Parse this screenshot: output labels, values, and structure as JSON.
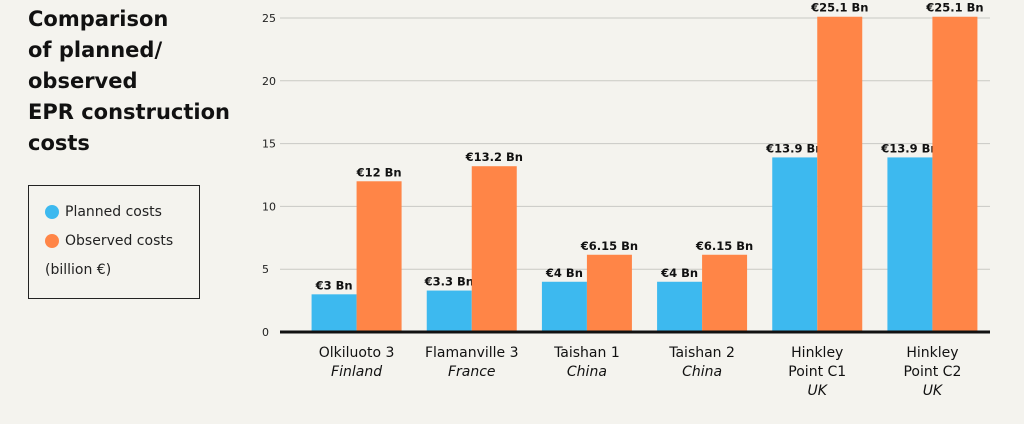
{
  "chart_data": {
    "type": "bar",
    "title": "Comparison\nof planned/\nobserved\nEPR construction\ncosts",
    "legend_note": "(billion €)",
    "categories": [
      "Olkiluoto 3",
      "Flamanville 3",
      "Taishan 1",
      "Taishan 2",
      "Hinkley Point C1",
      "Hinkley Point C2"
    ],
    "countries": [
      "Finland",
      "France",
      "China",
      "China",
      "UK",
      "UK"
    ],
    "series": [
      {
        "name": "Planned costs",
        "color": "#3db9ef",
        "values": [
          3,
          3.3,
          4,
          4,
          13.9,
          13.9
        ],
        "value_labels": [
          "€3 Bn",
          "€3.3 Bn",
          "€4 Bn",
          "€4 Bn",
          "€13.9 Bn",
          "€13.9 Bn"
        ]
      },
      {
        "name": "Observed costs",
        "color": "#ff8547",
        "values": [
          12,
          13.2,
          6.15,
          6.15,
          25.1,
          25.1
        ],
        "value_labels": [
          "€12 Bn",
          "€13.2 Bn",
          "€6.15 Bn",
          "€6.15 Bn",
          "€25.1 Bn",
          "€25.1 Bn"
        ]
      }
    ],
    "ylim": [
      0,
      25
    ],
    "yticks": [
      0,
      5,
      10,
      15,
      20,
      25
    ],
    "grid": true
  }
}
